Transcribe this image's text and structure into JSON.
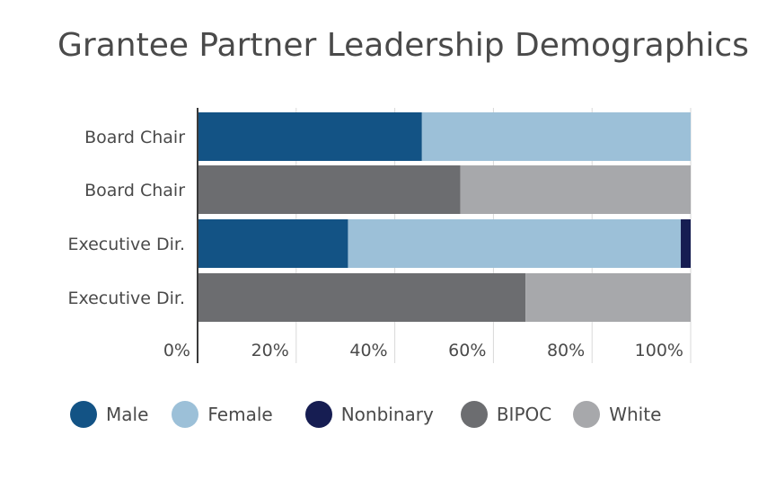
{
  "chart_data": {
    "type": "bar",
    "orientation": "horizontal",
    "stacked": true,
    "title": "Grantee Partner Leadership Demographics",
    "categories": [
      "Board Chair",
      "Board Chair",
      "Executive Dir.",
      "Executive Dir."
    ],
    "xlim": [
      0,
      100
    ],
    "x_ticks": [
      "0%",
      "20%",
      "40%",
      "60%",
      "80%",
      "100%"
    ],
    "grid": "vertical",
    "legend_position": "bottom",
    "series": [
      {
        "name": "Male",
        "color": "#135385",
        "values": [
          45.5,
          0,
          30.5,
          0
        ]
      },
      {
        "name": "Female",
        "color": "#9cc0d8",
        "values": [
          54.5,
          0,
          67.5,
          0
        ]
      },
      {
        "name": "Nonbinary",
        "color": "#161d52",
        "values": [
          0,
          0,
          2,
          0
        ]
      },
      {
        "name": "BIPOC",
        "color": "#6c6d70",
        "values": [
          0,
          53.3,
          0,
          66.5
        ]
      },
      {
        "name": "White",
        "color": "#a7a8ab",
        "values": [
          0,
          46.7,
          0,
          33.5
        ]
      }
    ]
  }
}
